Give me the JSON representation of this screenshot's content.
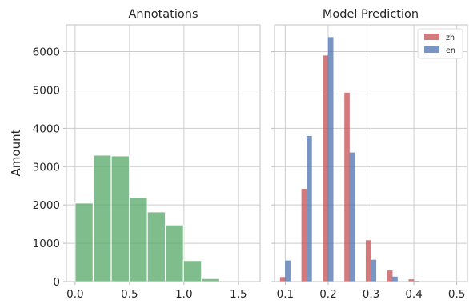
{
  "chart_data": [
    {
      "type": "bar",
      "title": "Annotations",
      "ylabel": "Amount",
      "xlim": [
        -0.08,
        1.7
      ],
      "ylim": [
        0,
        6700
      ],
      "xticks": [
        0.0,
        0.5,
        1.0,
        1.5
      ],
      "xtick_labels": [
        "0.0",
        "0.5",
        "1.0",
        "1.5"
      ],
      "yticks": [
        0,
        1000,
        2000,
        3000,
        4000,
        5000,
        6000
      ],
      "ytick_labels": [
        "0",
        "1000",
        "2000",
        "3000",
        "4000",
        "5000",
        "6000"
      ],
      "grid": true,
      "bin_edges": [
        0.0,
        0.166,
        0.332,
        0.498,
        0.664,
        0.83,
        0.996,
        1.162,
        1.328,
        1.494
      ],
      "series": [
        {
          "color": "#55a868",
          "values": [
            2050,
            3300,
            3280,
            2200,
            1820,
            1480,
            550,
            80,
            10
          ]
        }
      ]
    },
    {
      "type": "bar",
      "title": "Model Prediction",
      "xlim": [
        0.075,
        0.525
      ],
      "ylim": [
        0,
        6700
      ],
      "xticks": [
        0.1,
        0.2,
        0.3,
        0.4,
        0.5
      ],
      "xtick_labels": [
        "0.1",
        "0.2",
        "0.3",
        "0.4",
        "0.5"
      ],
      "grid": true,
      "legend": "top-right",
      "bar_width": 0.0125,
      "series": [
        {
          "name": "zh",
          "color": "#c44e52",
          "x": [
            0.094,
            0.144,
            0.194,
            0.244,
            0.294,
            0.344,
            0.394,
            0.444,
            0.494
          ],
          "values": [
            120,
            2420,
            5900,
            4930,
            1080,
            290,
            60,
            10,
            5
          ]
        },
        {
          "name": "en",
          "color": "#4c72b0",
          "x": [
            0.106,
            0.156,
            0.206,
            0.256,
            0.306,
            0.356,
            0.406,
            0.456,
            0.506
          ],
          "values": [
            550,
            3800,
            6380,
            3370,
            570,
            130,
            20,
            5,
            5
          ]
        }
      ]
    }
  ]
}
